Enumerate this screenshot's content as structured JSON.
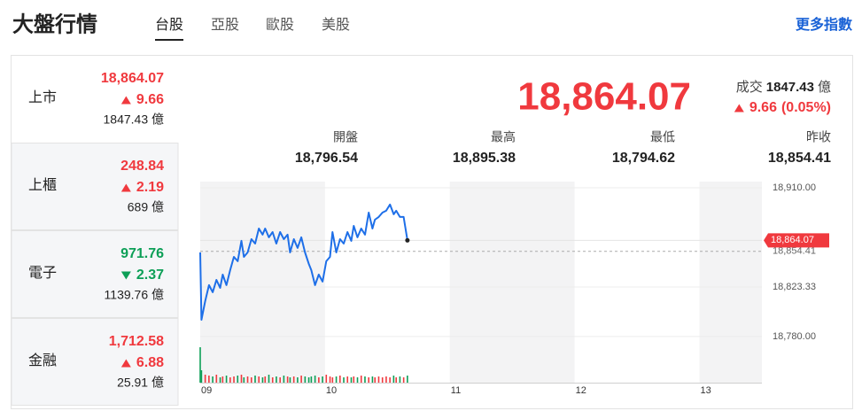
{
  "header": {
    "title": "大盤行情",
    "tabs": [
      "台股",
      "亞股",
      "歐股",
      "美股"
    ],
    "active_tab": 0,
    "link": "更多指數"
  },
  "colors": {
    "up": "#f0393e",
    "down": "#0d9f57",
    "line": "#1e6fe8"
  },
  "sidebar_selected": 0,
  "sidebar": [
    {
      "name": "上市",
      "price": "18,864.07",
      "change": "9.66",
      "volume": "1847.43 億",
      "direction": "up"
    },
    {
      "name": "上櫃",
      "price": "248.84",
      "change": "2.19",
      "volume": "689 億",
      "direction": "up"
    },
    {
      "name": "電子",
      "price": "971.76",
      "change": "2.37",
      "volume": "1139.76 億",
      "direction": "down"
    },
    {
      "name": "金融",
      "price": "1,712.58",
      "change": "6.88",
      "volume": "25.91 億",
      "direction": "up"
    }
  ],
  "quote": {
    "price": "18,864.07",
    "volume_label": "成交",
    "volume": "1847.43",
    "volume_unit": "億",
    "change": "9.66",
    "change_pct": "(0.05%)",
    "direction": "up"
  },
  "stats": [
    {
      "label": "開盤",
      "value": "18,796.54"
    },
    {
      "label": "最高",
      "value": "18,895.38"
    },
    {
      "label": "最低",
      "value": "18,794.62"
    },
    {
      "label": "昨收",
      "value": "18,854.41"
    }
  ],
  "chart": {
    "type": "line",
    "x": [
      9,
      9.01,
      9.04,
      9.07,
      9.1,
      9.13,
      9.16,
      9.18,
      9.21,
      9.24,
      9.27,
      9.3,
      9.33,
      9.35,
      9.38,
      9.41,
      9.44,
      9.47,
      9.5,
      9.52,
      9.55,
      9.58,
      9.61,
      9.64,
      9.67,
      9.7,
      9.72,
      9.75,
      9.78,
      9.81,
      9.84,
      9.87,
      9.89,
      9.92,
      9.95,
      9.98,
      10.01,
      10.04,
      10.06,
      10.09,
      10.12,
      10.15,
      10.18,
      10.21,
      10.23,
      10.26,
      10.29,
      10.32,
      10.35,
      10.38,
      10.4,
      10.43,
      10.46,
      10.49,
      10.52,
      10.55,
      10.57,
      10.6,
      10.63,
      10.66
    ],
    "values": [
      18853.5,
      18794.62,
      18810.9,
      18824.9,
      18818.7,
      18829.5,
      18822.5,
      18834.1,
      18824.9,
      18838.0,
      18849.6,
      18845.8,
      18863.6,
      18849.6,
      18853.5,
      18865.1,
      18861.2,
      18874.4,
      18869.0,
      18874.4,
      18866.7,
      18871.3,
      18861.2,
      18871.3,
      18865.1,
      18869.0,
      18853.5,
      18865.1,
      18857.4,
      18866.7,
      18853.5,
      18843.4,
      18838.0,
      18824.9,
      18834.1,
      18828.0,
      18845.8,
      18849.6,
      18871.3,
      18853.5,
      18865.1,
      18861.2,
      18871.3,
      18863.6,
      18876.7,
      18866.7,
      18874.4,
      18869.0,
      18888.3,
      18874.4,
      18882.1,
      18884.5,
      18888.3,
      18889.9,
      18895.38,
      18886.8,
      18889.9,
      18884.5,
      18884.5,
      18864.07
    ],
    "volume": [
      40,
      14,
      9,
      8,
      7,
      9,
      6,
      7,
      8,
      6,
      7,
      8,
      9,
      6,
      7,
      6,
      8,
      7,
      6,
      7,
      9,
      6,
      7,
      6,
      8,
      7,
      6,
      7,
      6,
      8,
      7,
      6,
      7,
      8,
      6,
      7,
      9,
      7,
      6,
      7,
      8,
      6,
      7,
      6,
      7,
      6,
      8,
      7,
      6,
      7,
      6,
      7,
      6,
      7,
      6,
      8,
      6,
      7,
      6,
      8
    ],
    "xlim": [
      9,
      13.5
    ],
    "xticks": [
      {
        "value": 9,
        "label": "09"
      },
      {
        "value": 10,
        "label": "10"
      },
      {
        "value": 11,
        "label": "11"
      },
      {
        "value": 12,
        "label": "12"
      },
      {
        "value": 13,
        "label": "13"
      }
    ],
    "ylim": [
      18772.2,
      18915.4
    ],
    "yticks": [
      {
        "value": 18910,
        "label": "18,910.00"
      },
      {
        "value": 18823.33,
        "label": "18,823.33"
      },
      {
        "value": 18780,
        "label": "18,780.00"
      }
    ],
    "prev_close": 18854.41
  }
}
